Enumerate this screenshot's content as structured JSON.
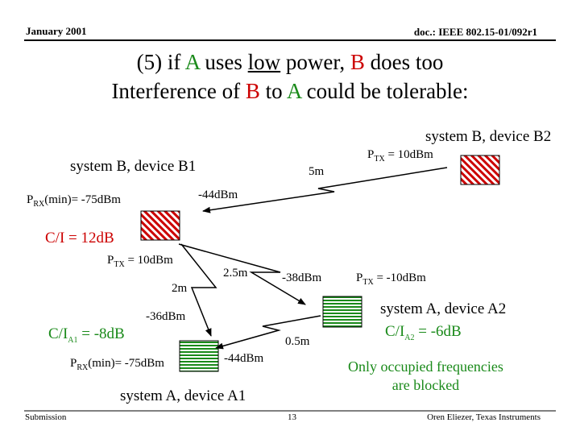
{
  "header": {
    "date": "January 2001",
    "doc": "doc.: IEEE 802.15-01/092r1"
  },
  "title": {
    "line1": {
      "pre": "(5) if ",
      "a": "A",
      "mid1": " uses ",
      "low": "low",
      "mid2": " power, ",
      "b": "B",
      "post": " does too"
    },
    "line2": {
      "pre": "Interference of ",
      "b": "B",
      "mid": " to ",
      "a": "A",
      "post": " could be tolerable:"
    }
  },
  "labels": {
    "system_b_device_b2": "system B, device B2",
    "system_b_device_b1": "system B, device B1",
    "ptx_b2": {
      "p": "P",
      "sub": "TX",
      "rest": " = 10dBm"
    },
    "dist_5m": "5m",
    "prx_min_b": {
      "p": "P",
      "sub": "RX",
      "rest": "(min)= -75dBm"
    },
    "level_44_top": "-44dBm",
    "ci_b": "C/I = 12dB",
    "ptx_b1": {
      "p": "P",
      "sub": "TX",
      "rest": " = 10dBm"
    },
    "dist_2_5m": "2.5m",
    "level_38": "-38dBm",
    "ptx_a2": {
      "p": "P",
      "sub": "TX",
      "rest": " = -10dBm"
    },
    "dist_2m": "2m",
    "system_a_device_a2": "system A, device A2",
    "level_36": "-36dBm",
    "ci_a1": {
      "pre": "C/I",
      "sub": "A1",
      "rest": " = -8dB"
    },
    "dist_0_5m": "0.5m",
    "ci_a2": {
      "pre": "C/I",
      "sub": "A2",
      "rest": " = -6dB"
    },
    "prx_min_a": {
      "p": "P",
      "sub": "RX",
      "rest": "(min)= -75dBm"
    },
    "level_44_bottom": "-44dBm",
    "note_line1": "Only occupied frequencies",
    "note_line2": "are blocked",
    "system_a_device_a1": "system A, device A1"
  },
  "footer": {
    "left": "Submission",
    "page": "13",
    "right": "Oren Eliezer, Texas Instruments"
  },
  "colors": {
    "system_a": "#1a8a1a",
    "system_b": "#cc0000"
  }
}
